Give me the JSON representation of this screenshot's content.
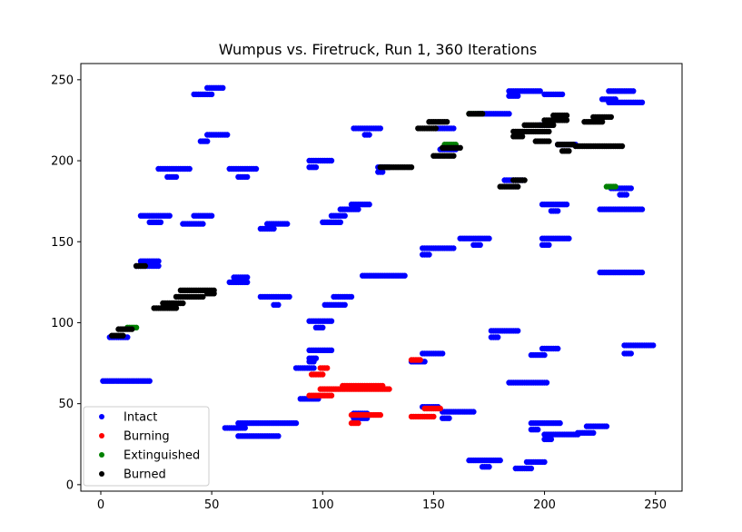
{
  "chart_data": {
    "type": "scatter",
    "title": "Wumpus vs. Firetruck, Run 1, 360 Iterations",
    "xlabel": "",
    "ylabel": "",
    "xlim": [
      -9,
      262
    ],
    "ylim": [
      -4,
      260
    ],
    "xticks": [
      0,
      50,
      100,
      150,
      200,
      250
    ],
    "yticks": [
      0,
      50,
      100,
      150,
      200,
      250
    ],
    "grid": false,
    "legend_position": "lower-left",
    "series": [
      {
        "name": "Intact",
        "color": "#0000ff",
        "segments": [
          [
            1,
            64,
            22,
            64
          ],
          [
            4,
            91,
            12,
            91
          ],
          [
            16,
            135,
            26,
            135
          ],
          [
            18,
            138,
            26,
            138
          ],
          [
            18,
            166,
            31,
            166
          ],
          [
            22,
            162,
            27,
            162
          ],
          [
            26,
            195,
            40,
            195
          ],
          [
            30,
            190,
            34,
            190
          ],
          [
            37,
            161,
            46,
            161
          ],
          [
            42,
            166,
            50,
            166
          ],
          [
            42,
            241,
            50,
            241
          ],
          [
            48,
            245,
            55,
            245
          ],
          [
            45,
            212,
            48,
            212
          ],
          [
            48,
            216,
            57,
            216
          ],
          [
            58,
            125,
            66,
            125
          ],
          [
            60,
            128,
            66,
            128
          ],
          [
            56,
            35,
            65,
            35
          ],
          [
            62,
            38,
            88,
            38
          ],
          [
            62,
            30,
            80,
            30
          ],
          [
            58,
            195,
            70,
            195
          ],
          [
            62,
            190,
            66,
            190
          ],
          [
            72,
            158,
            78,
            158
          ],
          [
            75,
            161,
            84,
            161
          ],
          [
            72,
            116,
            85,
            116
          ],
          [
            78,
            111,
            80,
            111
          ],
          [
            90,
            53,
            98,
            53
          ],
          [
            88,
            72,
            96,
            72
          ],
          [
            94,
            76,
            96,
            76
          ],
          [
            94,
            83,
            104,
            83
          ],
          [
            94,
            78,
            97,
            78
          ],
          [
            94,
            101,
            104,
            101
          ],
          [
            97,
            97,
            100,
            97
          ],
          [
            94,
            200,
            104,
            200
          ],
          [
            94,
            196,
            97,
            196
          ],
          [
            100,
            162,
            108,
            162
          ],
          [
            104,
            166,
            110,
            166
          ],
          [
            108,
            170,
            116,
            170
          ],
          [
            113,
            173,
            121,
            173
          ],
          [
            101,
            111,
            110,
            111
          ],
          [
            105,
            116,
            113,
            116
          ],
          [
            114,
            44,
            120,
            44
          ],
          [
            114,
            41,
            120,
            41
          ],
          [
            114,
            220,
            126,
            220
          ],
          [
            119,
            216,
            121,
            216
          ],
          [
            118,
            129,
            137,
            129
          ],
          [
            125,
            196,
            130,
            196
          ],
          [
            125,
            193,
            127,
            193
          ],
          [
            140,
            76,
            146,
            76
          ],
          [
            145,
            81,
            154,
            81
          ],
          [
            145,
            142,
            148,
            142
          ],
          [
            145,
            146,
            159,
            146
          ],
          [
            145,
            48,
            152,
            48
          ],
          [
            154,
            45,
            168,
            45
          ],
          [
            154,
            41,
            157,
            41
          ],
          [
            153,
            207,
            160,
            207
          ],
          [
            151,
            220,
            159,
            220
          ],
          [
            162,
            152,
            175,
            152
          ],
          [
            168,
            148,
            171,
            148
          ],
          [
            166,
            15,
            180,
            15
          ],
          [
            172,
            11,
            175,
            11
          ],
          [
            170,
            229,
            184,
            229
          ],
          [
            176,
            95,
            188,
            95
          ],
          [
            176,
            91,
            179,
            91
          ],
          [
            182,
            188,
            190,
            188
          ],
          [
            184,
            243,
            198,
            243
          ],
          [
            184,
            240,
            188,
            240
          ],
          [
            184,
            63,
            201,
            63
          ],
          [
            187,
            10,
            194,
            10
          ],
          [
            192,
            14,
            200,
            14
          ],
          [
            194,
            80,
            200,
            80
          ],
          [
            199,
            84,
            206,
            84
          ],
          [
            194,
            38,
            207,
            38
          ],
          [
            194,
            34,
            197,
            34
          ],
          [
            198,
            222,
            203,
            222
          ],
          [
            199,
            173,
            210,
            173
          ],
          [
            203,
            169,
            206,
            169
          ],
          [
            199,
            152,
            211,
            152
          ],
          [
            199,
            148,
            202,
            148
          ],
          [
            200,
            241,
            208,
            241
          ],
          [
            200,
            28,
            203,
            28
          ],
          [
            200,
            31,
            215,
            31
          ],
          [
            206,
            210,
            214,
            210
          ],
          [
            215,
            32,
            222,
            32
          ],
          [
            219,
            36,
            228,
            36
          ],
          [
            226,
            238,
            232,
            238
          ],
          [
            229,
            243,
            240,
            243
          ],
          [
            229,
            236,
            244,
            236
          ],
          [
            225,
            170,
            244,
            170
          ],
          [
            230,
            183,
            239,
            183
          ],
          [
            234,
            179,
            237,
            179
          ],
          [
            225,
            131,
            244,
            131
          ],
          [
            236,
            81,
            239,
            81
          ],
          [
            236,
            86,
            249,
            86
          ]
        ]
      },
      {
        "name": "Burning",
        "color": "#ff0000",
        "segments": [
          [
            94,
            55,
            104,
            55
          ],
          [
            95,
            68,
            100,
            68
          ],
          [
            99,
            72,
            102,
            72
          ],
          [
            99,
            59,
            130,
            59
          ],
          [
            109,
            61,
            127,
            61
          ],
          [
            113,
            38,
            116,
            38
          ],
          [
            113,
            43,
            126,
            43
          ],
          [
            140,
            42,
            150,
            42
          ],
          [
            146,
            47,
            153,
            47
          ],
          [
            140,
            77,
            144,
            77
          ]
        ]
      },
      {
        "name": "Extinguished",
        "color": "#008000",
        "segments": [
          [
            166,
            229,
            172,
            229
          ],
          [
            155,
            210,
            160,
            210
          ],
          [
            228,
            184,
            232,
            184
          ],
          [
            12,
            97,
            16,
            97
          ]
        ]
      },
      {
        "name": "Burned",
        "color": "#000000",
        "segments": [
          [
            5,
            92,
            10,
            92
          ],
          [
            8,
            96,
            14,
            96
          ],
          [
            16,
            135,
            20,
            135
          ],
          [
            24,
            109,
            34,
            109
          ],
          [
            28,
            112,
            37,
            112
          ],
          [
            34,
            116,
            46,
            116
          ],
          [
            36,
            120,
            51,
            120
          ],
          [
            48,
            118,
            51,
            118
          ],
          [
            126,
            196,
            140,
            196
          ],
          [
            143,
            220,
            151,
            220
          ],
          [
            148,
            224,
            156,
            224
          ],
          [
            150,
            203,
            159,
            203
          ],
          [
            154,
            208,
            162,
            208
          ],
          [
            166,
            229,
            172,
            229
          ],
          [
            180,
            184,
            188,
            184
          ],
          [
            186,
            188,
            191,
            188
          ],
          [
            186,
            218,
            202,
            218
          ],
          [
            191,
            222,
            204,
            222
          ],
          [
            186,
            215,
            190,
            215
          ],
          [
            196,
            212,
            202,
            212
          ],
          [
            200,
            225,
            210,
            225
          ],
          [
            204,
            228,
            210,
            228
          ],
          [
            206,
            210,
            213,
            210
          ],
          [
            208,
            206,
            211,
            206
          ],
          [
            214,
            209,
            235,
            209
          ],
          [
            218,
            224,
            226,
            224
          ],
          [
            222,
            227,
            230,
            227
          ]
        ]
      }
    ]
  }
}
